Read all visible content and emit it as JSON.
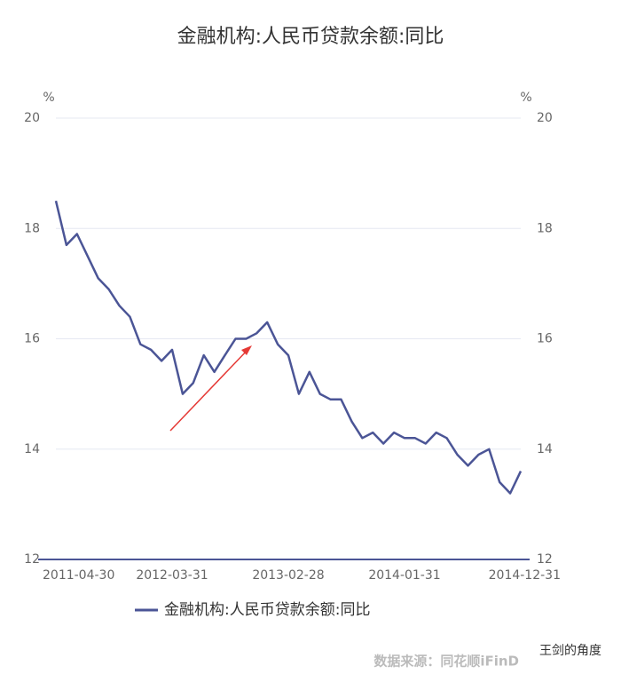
{
  "chart_data": {
    "type": "line",
    "title": "金融机构:人民币贷款余额:同比",
    "y_unit": "%",
    "y2_unit": "%",
    "categories": [
      "2011-04-30",
      null,
      null,
      null,
      null,
      null,
      null,
      null,
      null,
      null,
      null,
      "2012-03-31",
      null,
      null,
      null,
      null,
      null,
      null,
      null,
      null,
      null,
      null,
      "2013-02-28",
      null,
      null,
      null,
      null,
      null,
      null,
      null,
      null,
      null,
      null,
      "2014-01-31",
      null,
      null,
      null,
      null,
      null,
      null,
      null,
      null,
      null,
      null,
      "2014-12-31"
    ],
    "series": [
      {
        "name": "金融机构:人民币贷款余额:同比",
        "color": "#4b5596",
        "values": [
          18.5,
          17.7,
          17.9,
          17.5,
          17.1,
          16.9,
          16.6,
          16.4,
          15.9,
          15.8,
          15.6,
          15.8,
          15.0,
          15.2,
          15.7,
          15.4,
          15.7,
          16.0,
          16.0,
          16.1,
          16.3,
          15.9,
          15.7,
          15.0,
          15.4,
          15.0,
          14.9,
          14.9,
          14.5,
          14.2,
          14.3,
          14.1,
          14.3,
          14.2,
          14.2,
          14.1,
          14.3,
          14.2,
          13.9,
          13.7,
          13.9,
          14.0,
          13.4,
          13.2,
          13.6
        ]
      }
    ],
    "ylim": [
      12,
      20
    ],
    "yticks": [
      12,
      14,
      16,
      18,
      20
    ],
    "y2lim": [
      12,
      20
    ],
    "y2ticks": [
      12,
      14,
      16,
      18,
      20
    ],
    "grid": true,
    "legend": "bottom",
    "source": "数据来源：同花顺iFinD",
    "watermark": "王剑的角度"
  }
}
